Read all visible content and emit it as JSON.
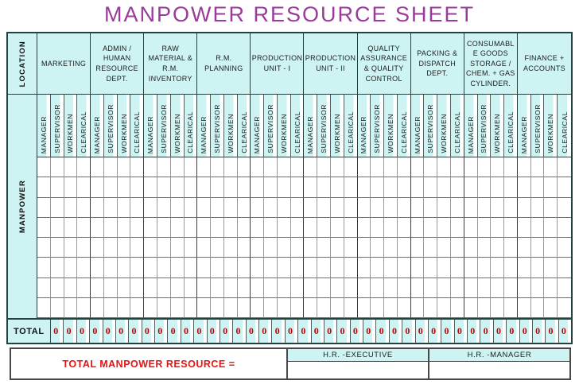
{
  "title": "MANPOWER RESOURCE SHEET",
  "colors": {
    "title_purple": "#9b3a9b",
    "cell_cyan": "#cdf3f3",
    "grid_border_dark": "#24403f",
    "total_value_red": "#c40000",
    "footer_label_red": "#e81313"
  },
  "table": {
    "location_label": "LOCATION",
    "manpower_label": "MANPOWER",
    "departments": [
      "MARKETING",
      "ADMIN /\nHUMAN\nRESOURCE\nDEPT.",
      "RAW\nMATERIAL &\nR.M.\nINVENTORY",
      "R.M.\nPLANNING",
      "PRODUCTION\nUNIT - I",
      "PRODUCTION\nUNIT - II",
      "QUALITY\nASSURANCE\n& QUALITY\nCONTROL",
      "PACKING &\nDISPATCH\nDEPT.",
      "CONSUMABL\nE GOODS\nSTORAGE /\nCHEM. + GAS\nCYLINDER.",
      "FINANCE +\nACCOUNTS"
    ],
    "roles": [
      "MANAGER",
      "SUPERVISOR",
      "WORKMEN",
      "CLEARICAL"
    ],
    "body_rows": 8,
    "total_label": "TOTAL",
    "totals": [
      "0",
      "0",
      "0",
      "0",
      "0",
      "0",
      "0",
      "0",
      "0",
      "0",
      "0",
      "0",
      "0",
      "0",
      "0",
      "0",
      "0",
      "0",
      "0",
      "0",
      "0",
      "0",
      "0",
      "0",
      "0",
      "0",
      "0",
      "0",
      "0",
      "0",
      "0",
      "0",
      "0",
      "0",
      "0",
      "0",
      "0",
      "0",
      "0",
      "0"
    ]
  },
  "footer": {
    "total_resource_label": "TOTAL MANPOWER RESOURCE =",
    "signatories": [
      "H.R. -EXECUTIVE",
      "H.R. -MANAGER"
    ]
  }
}
